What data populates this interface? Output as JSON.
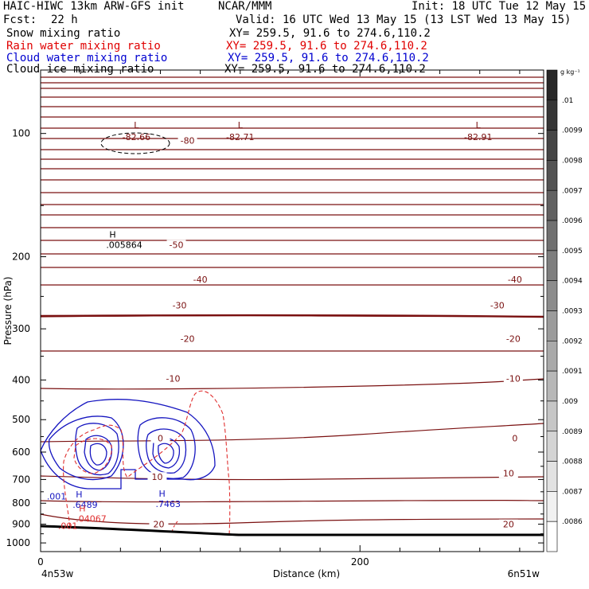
{
  "header": {
    "model": "HAIC-HIWC 13km ARW-GFS init",
    "org": "NCAR/MMM",
    "init": "Init: 18 UTC Tue 12 May 15",
    "fcst_label": "Fcst:",
    "fcst_value": "22 h",
    "valid": "Valid: 16 UTC Wed 13 May 15 (13 LST Wed 13 May 15)"
  },
  "fields": [
    {
      "name": "Snow mixing ratio",
      "xy": "XY= 259.5, 91.6 to 274.6,110.2",
      "color": "#000000"
    },
    {
      "name": "Rain water mixing ratio",
      "xy": "XY= 259.5, 91.6 to 274.6,110.2",
      "color": "#e00000"
    },
    {
      "name": "Cloud water mixing ratio",
      "xy": "XY= 259.5, 91.6 to 274.6,110.2",
      "color": "#0000d0"
    },
    {
      "name": "Cloud ice mixing ratio",
      "xy": "XY= 259.5, 91.6 to 274.6,110.2",
      "color": "#000000"
    }
  ],
  "colors": {
    "temperature": "#7a1010",
    "rain": "#e03030",
    "cloud_water": "#1515c0",
    "snow": "#000000",
    "ground": "#000000"
  },
  "chart_data": {
    "type": "cross-section contour",
    "ylabel": "Pressure (hPa)",
    "xlabel": "Distance (km)",
    "left_endpoint": "4n53w",
    "right_endpoint": "6n51w",
    "y_scale": "log",
    "ylim": [
      1050,
      70
    ],
    "xlim": [
      0,
      315
    ],
    "x_ticks": [
      "0",
      "200"
    ],
    "x_tick_values": [
      0,
      200
    ],
    "y_ticks": [
      "100",
      "200",
      "300",
      "400",
      "500",
      "600",
      "700",
      "800",
      "900",
      "1000"
    ],
    "y_tick_values": [
      100,
      200,
      300,
      400,
      500,
      600,
      700,
      800,
      900,
      1000
    ],
    "temperature_contours": [
      {
        "label": "-80",
        "p": 104,
        "x": 92
      },
      {
        "label": "-50",
        "p": 187,
        "x": 85
      },
      {
        "label": "-40",
        "p": 227,
        "x": 100
      },
      {
        "label": "-40",
        "p": 227,
        "x": 297
      },
      {
        "label": "-30",
        "p": 263,
        "x": 87
      },
      {
        "label": "-30",
        "p": 263,
        "x": 286
      },
      {
        "label": "-20",
        "p": 317,
        "x": 92
      },
      {
        "label": "-20",
        "p": 317,
        "x": 296
      },
      {
        "label": "-10",
        "p": 397,
        "x": 83
      },
      {
        "label": "-10",
        "p": 397,
        "x": 296
      },
      {
        "label": "0",
        "p": 555,
        "x": 75
      },
      {
        "label": "0",
        "p": 555,
        "x": 297
      },
      {
        "label": "10",
        "p": 690,
        "x": 73
      },
      {
        "label": "10",
        "p": 675,
        "x": 293
      },
      {
        "label": "20",
        "p": 900,
        "x": 74
      },
      {
        "label": "20",
        "p": 900,
        "x": 293
      }
    ],
    "lows": [
      {
        "label": "L",
        "value": "-82.66",
        "x": 60,
        "p": 97
      },
      {
        "label": "L",
        "value": "-82.71",
        "x": 125,
        "p": 97
      },
      {
        "label": "L",
        "value": "-82.91",
        "x": 274,
        "p": 97
      }
    ],
    "highs": [
      {
        "label": "H",
        "value": ".005864",
        "x": 51,
        "p": 183,
        "field": "Snow mixing ratio"
      },
      {
        "label": "H",
        "value": ".6489",
        "x": 30,
        "p": 788,
        "field": "Cloud water mixing ratio"
      },
      {
        "label": "H",
        "value": ".7463",
        "x": 82,
        "p": 785,
        "field": "Cloud water mixing ratio"
      },
      {
        "label": "H",
        "value": ".04067",
        "x": 32,
        "p": 853,
        "field": "Rain water mixing ratio"
      }
    ],
    "contour_labels": [
      {
        "label": ".001",
        "x": 10,
        "p": 783,
        "field": "Cloud water mixing ratio"
      },
      {
        "label": ".001",
        "x": 17,
        "p": 925,
        "field": "Rain water mixing ratio"
      }
    ],
    "colorbar": {
      "unit": "g kg⁻¹",
      "labels": [
        ".01",
        ".0099",
        ".0098",
        ".0097",
        ".0096",
        ".0095",
        ".0094",
        ".0093",
        ".0092",
        ".0091",
        ".009",
        ".0089",
        ".0088",
        ".0087",
        ".0086"
      ]
    }
  }
}
